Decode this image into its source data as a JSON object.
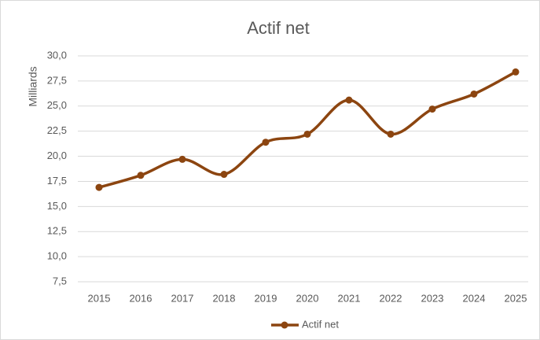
{
  "chart_data": {
    "type": "line",
    "title": "Actif net",
    "y_label": "Milliards",
    "categories": [
      "2015",
      "2016",
      "2017",
      "2018",
      "2019",
      "2020",
      "2021",
      "2022",
      "2023",
      "2024",
      "2025"
    ],
    "series": [
      {
        "name": "Actif net",
        "color": "#8c4510",
        "values": [
          16.9,
          18.1,
          19.7,
          18.2,
          21.4,
          22.2,
          25.6,
          22.2,
          24.7,
          26.2,
          28.4
        ]
      }
    ],
    "ylim": [
      7.5,
      30
    ],
    "yticks": [
      {
        "value": 7.5,
        "label": "7,5"
      },
      {
        "value": 10,
        "label": "10,0"
      },
      {
        "value": 12.5,
        "label": "12,5"
      },
      {
        "value": 15,
        "label": "15,0"
      },
      {
        "value": 17.5,
        "label": "17,5"
      },
      {
        "value": 20,
        "label": "20,0"
      },
      {
        "value": 22.5,
        "label": "22,5"
      },
      {
        "value": 25,
        "label": "25,0"
      },
      {
        "value": 27.5,
        "label": "27,5"
      },
      {
        "value": 30,
        "label": "30,0"
      }
    ],
    "grid": true,
    "legend": "bottom",
    "smooth": true
  }
}
